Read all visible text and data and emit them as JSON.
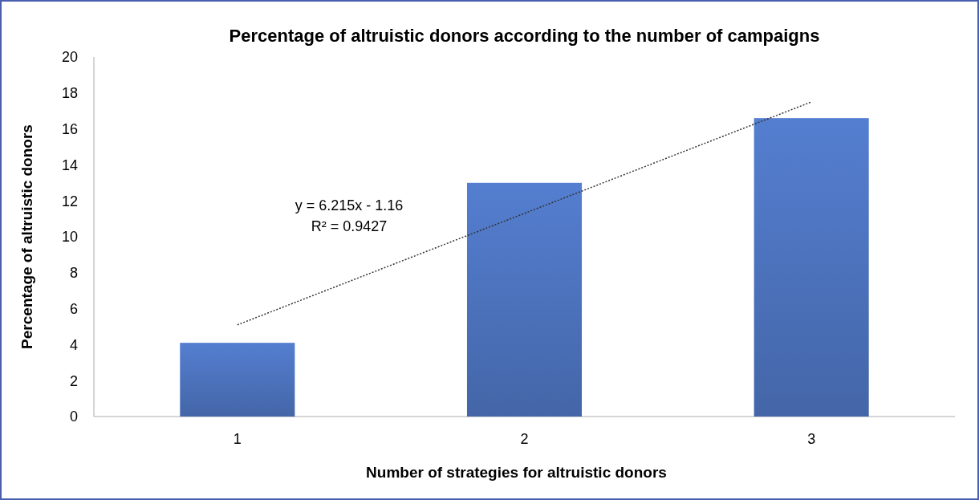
{
  "chart_data": {
    "type": "bar",
    "title": "Percentage of altruistic donors according to the number of campaigns",
    "xlabel": "Number of strategies for altruistic donors",
    "ylabel": "Percentage of altruistic donors",
    "categories": [
      "1",
      "2",
      "3"
    ],
    "series": [
      {
        "color": "#4a6fb8",
        "values": [
          4.1,
          13.0,
          16.6
        ]
      },
      {
        "type": "line",
        "color": "#333333",
        "line_style": "dotted",
        "marker": "none",
        "x": [
          "1",
          "3"
        ],
        "values": [
          5.1,
          17.5
        ]
      }
    ],
    "ylim": [
      0,
      20
    ],
    "yticks": [
      0,
      2,
      4,
      6,
      8,
      10,
      12,
      14,
      16,
      18,
      20
    ],
    "grid": false,
    "annotations": [
      "y = 6.215x - 1.16",
      "R² = 0.9427"
    ]
  }
}
